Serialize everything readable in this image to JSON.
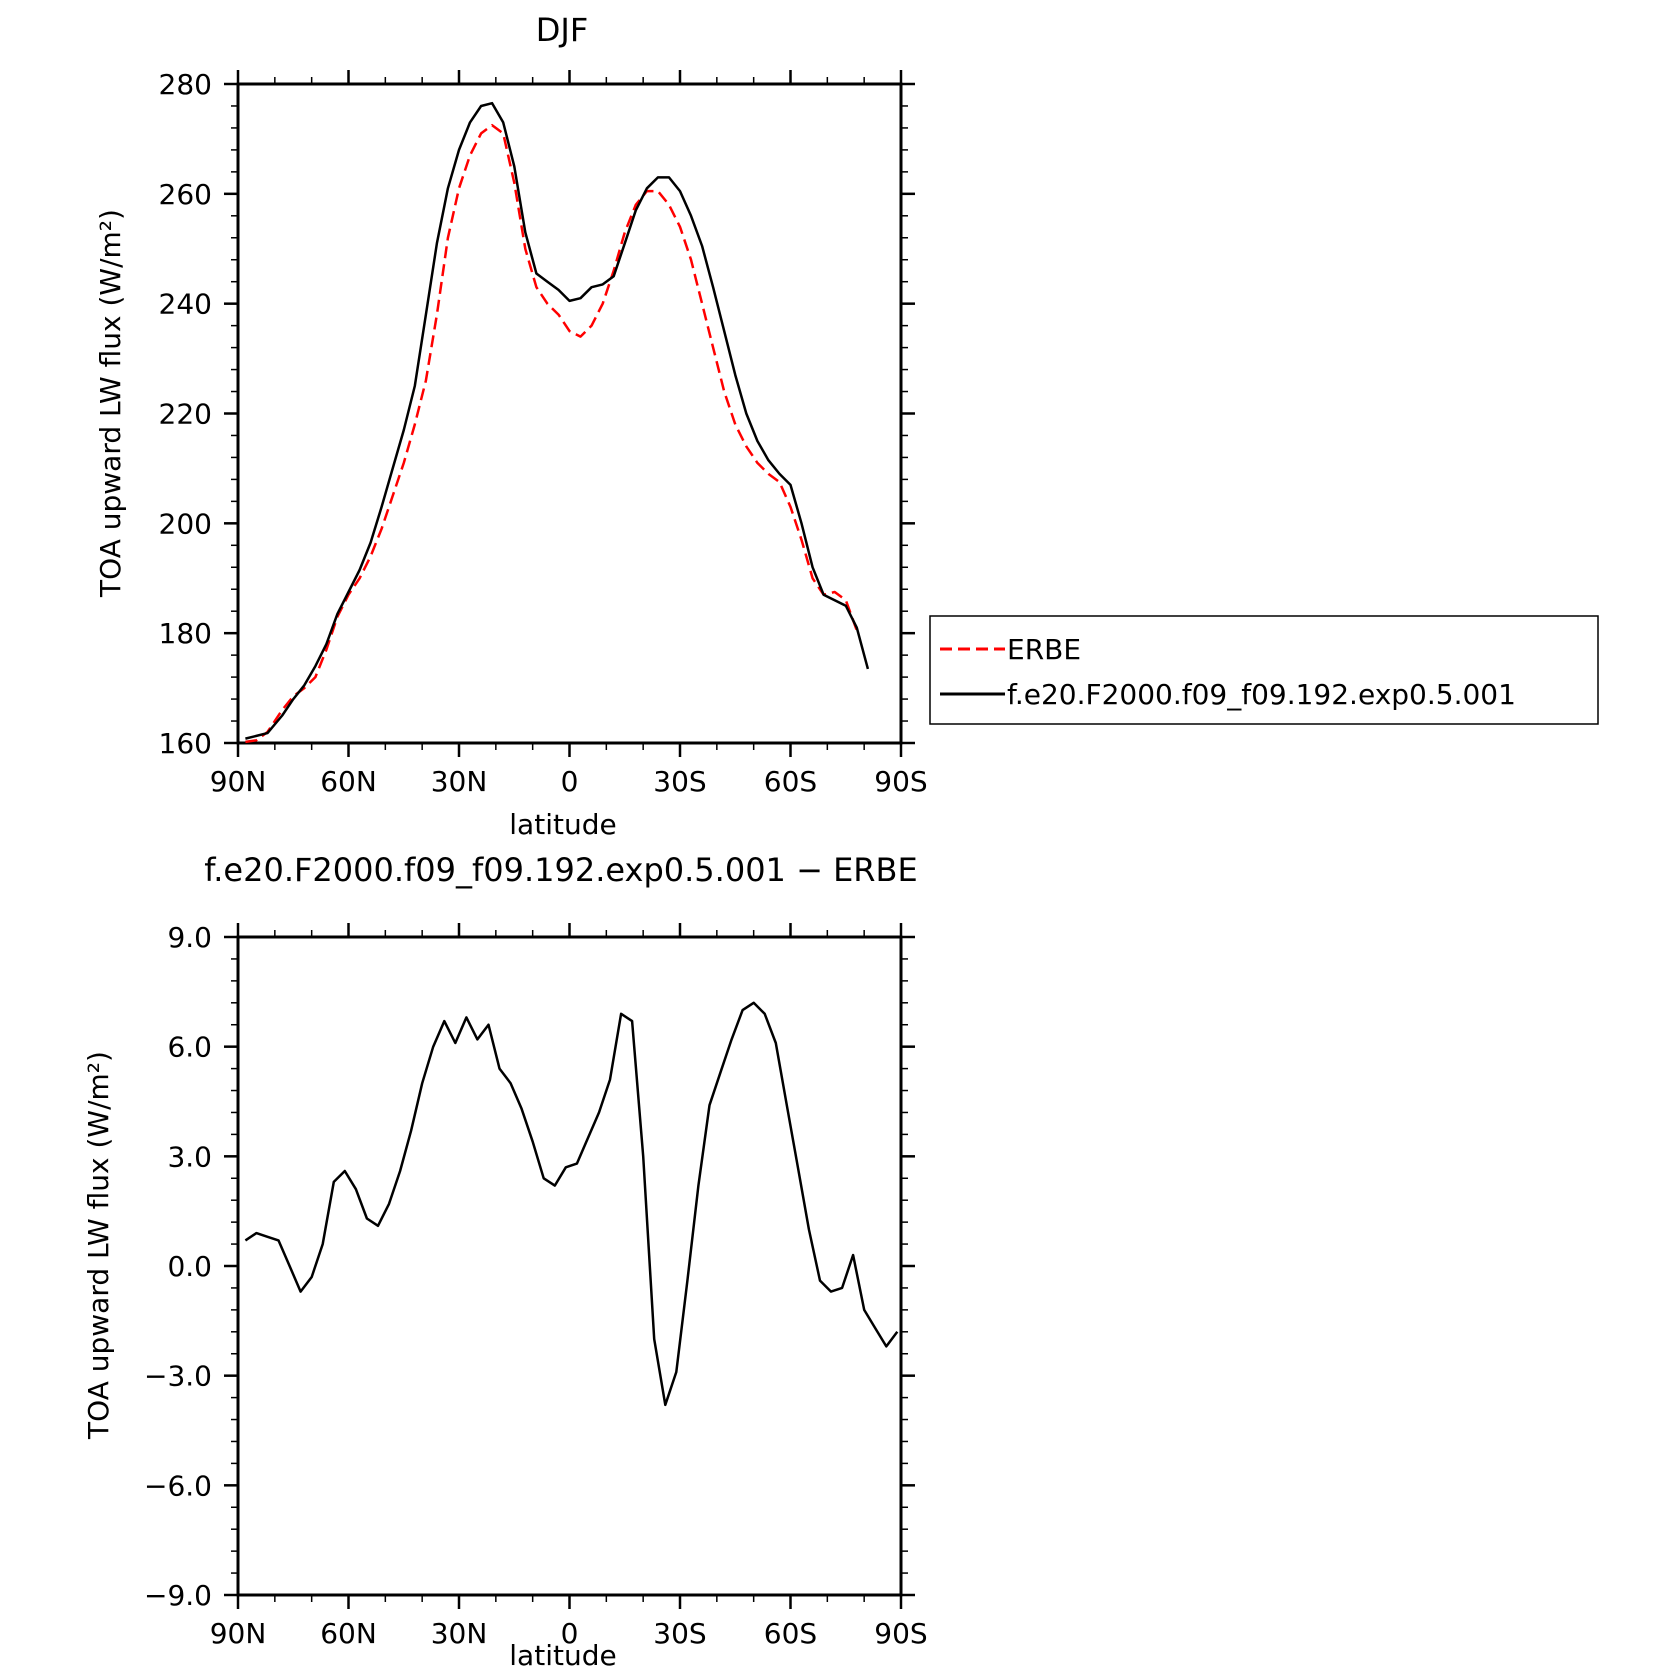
{
  "chart_data": [
    {
      "type": "line",
      "title": "DJF",
      "xlabel": "latitude",
      "ylabel": "TOA upward LW flux (W/m²)",
      "xlim": [
        90,
        -90
      ],
      "ylim": [
        160,
        280
      ],
      "xticks": [
        90,
        60,
        30,
        0,
        -30,
        -60,
        -90
      ],
      "xtick_labels": [
        "90N",
        "60N",
        "30N",
        "0",
        "30S",
        "60S",
        "90S"
      ],
      "yticks": [
        160,
        180,
        200,
        220,
        240,
        260,
        280
      ],
      "ytick_labels": [
        "160",
        "180",
        "200",
        "220",
        "240",
        "260",
        "280"
      ],
      "legend": "right",
      "series": [
        {
          "name": "ERBE",
          "color": "#ff0000",
          "dash": true,
          "points": [
            [
              88,
              160.2
            ],
            [
              85,
              160.5
            ],
            [
              82,
              162
            ],
            [
              78,
              166
            ],
            [
              75,
              168.5
            ],
            [
              72,
              170
            ],
            [
              69,
              172
            ],
            [
              66,
              177
            ],
            [
              63,
              183
            ],
            [
              60,
              187
            ],
            [
              57,
              190
            ],
            [
              54,
              194
            ],
            [
              51,
              199
            ],
            [
              48,
              205
            ],
            [
              45,
              211
            ],
            [
              42,
              218
            ],
            [
              39,
              226
            ],
            [
              36,
              238
            ],
            [
              33,
              252
            ],
            [
              30,
              261
            ],
            [
              27,
              267
            ],
            [
              24,
              271
            ],
            [
              21,
              272.5
            ],
            [
              18,
              271
            ],
            [
              15,
              262
            ],
            [
              12,
              250
            ],
            [
              9,
              243
            ],
            [
              6,
              240
            ],
            [
              3,
              238
            ],
            [
              0,
              235
            ],
            [
              -3,
              234
            ],
            [
              -6,
              236
            ],
            [
              -9,
              240
            ],
            [
              -12,
              246
            ],
            [
              -15,
              253
            ],
            [
              -18,
              258
            ],
            [
              -21,
              260.5
            ],
            [
              -24,
              260.5
            ],
            [
              -27,
              258
            ],
            [
              -30,
              254
            ],
            [
              -33,
              248
            ],
            [
              -36,
              240
            ],
            [
              -39,
              232
            ],
            [
              -42,
              224
            ],
            [
              -45,
              218
            ],
            [
              -48,
              214
            ],
            [
              -51,
              211
            ],
            [
              -54,
              209
            ],
            [
              -57,
              207.5
            ],
            [
              -60,
              203
            ],
            [
              -63,
              197
            ],
            [
              -66,
              190
            ],
            [
              -69,
              187
            ],
            [
              -72,
              187.5
            ],
            [
              -75,
              186
            ],
            [
              -78,
              180.5
            ]
          ]
        },
        {
          "name": "f.e20.F2000.f09_f09.192.exp0.5.001",
          "color": "#000000",
          "dash": false,
          "points": [
            [
              88,
              160.8
            ],
            [
              85,
              161.3
            ],
            [
              82,
              161.8
            ],
            [
              78,
              165
            ],
            [
              75,
              168
            ],
            [
              72,
              170.5
            ],
            [
              69,
              174
            ],
            [
              66,
              178
            ],
            [
              63,
              183.5
            ],
            [
              60,
              187.5
            ],
            [
              57,
              191.5
            ],
            [
              54,
              196.5
            ],
            [
              51,
              203
            ],
            [
              48,
              210
            ],
            [
              45,
              217
            ],
            [
              42,
              225
            ],
            [
              39,
              238
            ],
            [
              36,
              251
            ],
            [
              33,
              261
            ],
            [
              30,
              268
            ],
            [
              27,
              273
            ],
            [
              24,
              276
            ],
            [
              21,
              276.5
            ],
            [
              18,
              273
            ],
            [
              15,
              265
            ],
            [
              12,
              253
            ],
            [
              9,
              245.5
            ],
            [
              6,
              244
            ],
            [
              3,
              242.5
            ],
            [
              0,
              240.5
            ],
            [
              -3,
              241
            ],
            [
              -6,
              243
            ],
            [
              -9,
              243.5
            ],
            [
              -12,
              245
            ],
            [
              -15,
              251
            ],
            [
              -18,
              257
            ],
            [
              -21,
              261
            ],
            [
              -24,
              263
            ],
            [
              -27,
              263
            ],
            [
              -30,
              260.5
            ],
            [
              -33,
              256
            ],
            [
              -36,
              250.5
            ],
            [
              -39,
              243
            ],
            [
              -42,
              235
            ],
            [
              -45,
              227
            ],
            [
              -48,
              220
            ],
            [
              -51,
              215
            ],
            [
              -54,
              211.5
            ],
            [
              -57,
              209
            ],
            [
              -60,
              207
            ],
            [
              -63,
              200
            ],
            [
              -66,
              192
            ],
            [
              -69,
              187
            ],
            [
              -72,
              186
            ],
            [
              -75,
              185
            ],
            [
              -78,
              181
            ],
            [
              -81,
              173.5
            ]
          ]
        }
      ]
    },
    {
      "type": "line",
      "title": "f.e20.F2000.f09_f09.192.exp0.5.001 − ERBE",
      "xlabel": "latitude",
      "ylabel": "TOA upward LW flux (W/m²)",
      "xlim": [
        90,
        -90
      ],
      "ylim": [
        -9,
        9
      ],
      "xticks": [
        90,
        60,
        30,
        0,
        -30,
        -60,
        -90
      ],
      "xtick_labels": [
        "90N",
        "60N",
        "30N",
        "0",
        "30S",
        "60S",
        "90S"
      ],
      "yticks": [
        -9,
        -6,
        -3,
        0,
        3,
        6,
        9
      ],
      "ytick_labels": [
        "−9.0",
        "−6.0",
        "−3.0",
        "0.0",
        "3.0",
        "6.0",
        "9.0"
      ],
      "series": [
        {
          "color": "#000000",
          "dash": false,
          "points": [
            [
              88,
              0.7
            ],
            [
              85,
              0.9
            ],
            [
              82,
              0.8
            ],
            [
              79,
              0.7
            ],
            [
              76,
              0
            ],
            [
              73,
              -0.7
            ],
            [
              70,
              -0.3
            ],
            [
              67,
              0.6
            ],
            [
              64,
              2.3
            ],
            [
              61,
              2.6
            ],
            [
              58,
              2.1
            ],
            [
              55,
              1.3
            ],
            [
              52,
              1.1
            ],
            [
              49,
              1.7
            ],
            [
              46,
              2.6
            ],
            [
              43,
              3.7
            ],
            [
              40,
              5
            ],
            [
              37,
              6
            ],
            [
              34,
              6.7
            ],
            [
              31,
              6.1
            ],
            [
              28,
              6.8
            ],
            [
              25,
              6.2
            ],
            [
              22,
              6.6
            ],
            [
              19,
              5.4
            ],
            [
              16,
              5
            ],
            [
              13,
              4.3
            ],
            [
              10,
              3.4
            ],
            [
              7,
              2.4
            ],
            [
              4,
              2.2
            ],
            [
              1,
              2.7
            ],
            [
              -2,
              2.8
            ],
            [
              -5,
              3.5
            ],
            [
              -8,
              4.2
            ],
            [
              -11,
              5.1
            ],
            [
              -14,
              6.9
            ],
            [
              -17,
              6.7
            ],
            [
              -20,
              3
            ],
            [
              -23,
              -2
            ],
            [
              -26,
              -3.8
            ],
            [
              -29,
              -2.9
            ],
            [
              -32,
              -0.4
            ],
            [
              -35,
              2.2
            ],
            [
              -38,
              4.4
            ],
            [
              -41,
              5.3
            ],
            [
              -44,
              6.2
            ],
            [
              -47,
              7
            ],
            [
              -50,
              7.2
            ],
            [
              -53,
              6.9
            ],
            [
              -56,
              6.1
            ],
            [
              -59,
              4.4
            ],
            [
              -62,
              2.7
            ],
            [
              -65,
              1
            ],
            [
              -68,
              -0.4
            ],
            [
              -71,
              -0.7
            ],
            [
              -74,
              -0.6
            ],
            [
              -77,
              0.3
            ],
            [
              -80,
              -1.2
            ],
            [
              -83,
              -1.7
            ],
            [
              -86,
              -2.2
            ],
            [
              -89,
              -1.8
            ]
          ]
        }
      ]
    }
  ]
}
